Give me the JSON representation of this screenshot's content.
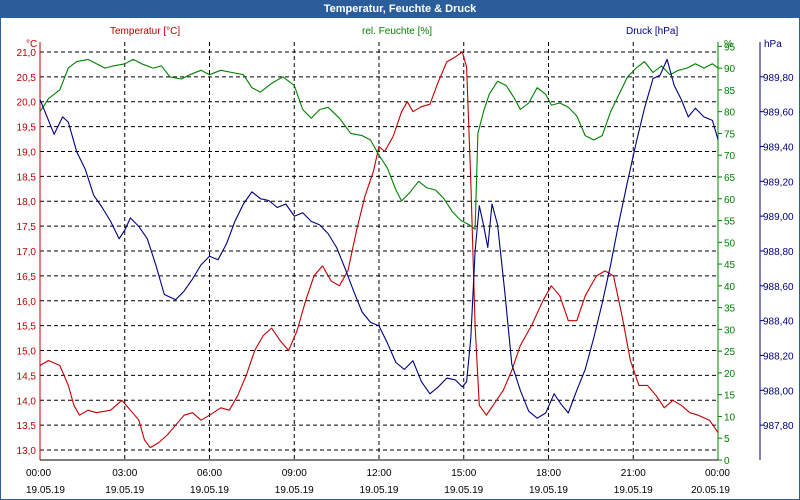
{
  "window": {
    "title": "Temperatur, Feuchte & Druck"
  },
  "chart_data": {
    "type": "line",
    "title": "Temperatur, Feuchte & Druck",
    "grid": true,
    "x_ticks": [
      {
        "time": "00:00",
        "date": "19.05.19",
        "h": 0
      },
      {
        "time": "03:00",
        "date": "19.05.19",
        "h": 3
      },
      {
        "time": "06:00",
        "date": "19.05.19",
        "h": 6
      },
      {
        "time": "09:00",
        "date": "19.05.19",
        "h": 9
      },
      {
        "time": "12:00",
        "date": "19.05.19",
        "h": 12
      },
      {
        "time": "15:00",
        "date": "19.05.19",
        "h": 15
      },
      {
        "time": "18:00",
        "date": "19.05.19",
        "h": 18
      },
      {
        "time": "21:00",
        "date": "19.05.19",
        "h": 21
      },
      {
        "time": "00:00",
        "date": "20.05.19",
        "h": 24
      }
    ],
    "axes": {
      "temperature": {
        "unit_label": "°C",
        "ylim": [
          12.8,
          21.2
        ],
        "ticks": [
          "13,0",
          "13,5",
          "14,0",
          "14,5",
          "15,0",
          "15,5",
          "16,0",
          "16,5",
          "17,0",
          "17,5",
          "18,0",
          "18,5",
          "19,0",
          "19,5",
          "20,0",
          "20,5",
          "21,0"
        ],
        "tick_values": [
          13.0,
          13.5,
          14.0,
          14.5,
          15.0,
          15.5,
          16.0,
          16.5,
          17.0,
          17.5,
          18.0,
          18.5,
          19.0,
          19.5,
          20.0,
          20.5,
          21.0
        ]
      },
      "humidity": {
        "unit_label": "%",
        "ylim": [
          0,
          96
        ],
        "ticks": [
          "0",
          "5",
          "10",
          "15",
          "20",
          "25",
          "30",
          "35",
          "40",
          "45",
          "50",
          "55",
          "60",
          "65",
          "70",
          "75",
          "80",
          "85",
          "90",
          "95"
        ],
        "tick_values": [
          0,
          5,
          10,
          15,
          20,
          25,
          30,
          35,
          40,
          45,
          50,
          55,
          60,
          65,
          70,
          75,
          80,
          85,
          90,
          95
        ]
      },
      "pressure": {
        "unit_label": "hPa",
        "ylim": [
          987.6,
          990.0
        ],
        "ticks": [
          "987,80",
          "988,00",
          "988,20",
          "988,40",
          "988,60",
          "988,80",
          "989,00",
          "989,20",
          "989,40",
          "989,60",
          "989,80"
        ],
        "tick_values": [
          987.8,
          988.0,
          988.2,
          988.4,
          988.6,
          988.8,
          989.0,
          989.2,
          989.4,
          989.6,
          989.8
        ]
      }
    },
    "series": [
      {
        "name": "Temperatur [°C]",
        "axis": "temperature",
        "color": "#c00000",
        "points": [
          [
            0,
            14.7
          ],
          [
            0.3,
            14.8
          ],
          [
            0.7,
            14.7
          ],
          [
            1,
            14.3
          ],
          [
            1.2,
            13.9
          ],
          [
            1.4,
            13.7
          ],
          [
            1.7,
            13.8
          ],
          [
            2,
            13.75
          ],
          [
            2.5,
            13.8
          ],
          [
            2.9,
            14.0
          ],
          [
            3.2,
            13.8
          ],
          [
            3.5,
            13.6
          ],
          [
            3.7,
            13.2
          ],
          [
            3.9,
            13.05
          ],
          [
            4.2,
            13.15
          ],
          [
            4.5,
            13.3
          ],
          [
            4.8,
            13.5
          ],
          [
            5.1,
            13.7
          ],
          [
            5.4,
            13.75
          ],
          [
            5.7,
            13.6
          ],
          [
            6,
            13.7
          ],
          [
            6.4,
            13.85
          ],
          [
            6.7,
            13.8
          ],
          [
            7,
            14.1
          ],
          [
            7.3,
            14.5
          ],
          [
            7.6,
            15.0
          ],
          [
            7.9,
            15.3
          ],
          [
            8.2,
            15.45
          ],
          [
            8.5,
            15.2
          ],
          [
            8.8,
            15.0
          ],
          [
            9.1,
            15.4
          ],
          [
            9.4,
            16.0
          ],
          [
            9.7,
            16.5
          ],
          [
            10,
            16.7
          ],
          [
            10.3,
            16.4
          ],
          [
            10.6,
            16.3
          ],
          [
            10.9,
            16.6
          ],
          [
            11.2,
            17.4
          ],
          [
            11.5,
            18.1
          ],
          [
            11.8,
            18.6
          ],
          [
            12,
            19.1
          ],
          [
            12.2,
            19.0
          ],
          [
            12.5,
            19.3
          ],
          [
            12.8,
            19.8
          ],
          [
            13.0,
            20.0
          ],
          [
            13.2,
            19.8
          ],
          [
            13.5,
            19.9
          ],
          [
            13.8,
            19.95
          ],
          [
            14.1,
            20.4
          ],
          [
            14.4,
            20.8
          ],
          [
            14.7,
            20.9
          ],
          [
            14.95,
            21.0
          ],
          [
            15.1,
            20.7
          ],
          [
            15.25,
            18.4
          ],
          [
            15.4,
            15.5
          ],
          [
            15.55,
            13.9
          ],
          [
            15.8,
            13.7
          ],
          [
            16.1,
            13.95
          ],
          [
            16.4,
            14.2
          ],
          [
            16.7,
            14.6
          ],
          [
            17,
            15.1
          ],
          [
            17.4,
            15.5
          ],
          [
            17.8,
            16.0
          ],
          [
            18.1,
            16.3
          ],
          [
            18.4,
            16.1
          ],
          [
            18.7,
            15.6
          ],
          [
            19.0,
            15.6
          ],
          [
            19.3,
            16.1
          ],
          [
            19.7,
            16.5
          ],
          [
            20.0,
            16.6
          ],
          [
            20.3,
            16.5
          ],
          [
            20.6,
            15.7
          ],
          [
            20.9,
            14.8
          ],
          [
            21.2,
            14.3
          ],
          [
            21.5,
            14.3
          ],
          [
            21.8,
            14.1
          ],
          [
            22.1,
            13.85
          ],
          [
            22.4,
            14.0
          ],
          [
            22.7,
            13.9
          ],
          [
            23.0,
            13.75
          ],
          [
            23.3,
            13.7
          ],
          [
            23.7,
            13.6
          ],
          [
            24,
            13.35
          ]
        ]
      },
      {
        "name": "rel. Feuchte [%]",
        "axis": "humidity",
        "color": "#008000",
        "points": [
          [
            0,
            80
          ],
          [
            0.3,
            83
          ],
          [
            0.7,
            85
          ],
          [
            1.0,
            90
          ],
          [
            1.3,
            91.5
          ],
          [
            1.7,
            92
          ],
          [
            2,
            91
          ],
          [
            2.3,
            90
          ],
          [
            2.6,
            90.5
          ],
          [
            3,
            91
          ],
          [
            3.3,
            92
          ],
          [
            3.6,
            91
          ],
          [
            4,
            90
          ],
          [
            4.3,
            90.5
          ],
          [
            4.6,
            88
          ],
          [
            5,
            87.5
          ],
          [
            5.3,
            88.5
          ],
          [
            5.7,
            89.5
          ],
          [
            6,
            88.5
          ],
          [
            6.4,
            89.5
          ],
          [
            6.8,
            89
          ],
          [
            7.2,
            88.5
          ],
          [
            7.5,
            85.5
          ],
          [
            7.8,
            84.5
          ],
          [
            8.2,
            86.5
          ],
          [
            8.6,
            88
          ],
          [
            9,
            86
          ],
          [
            9.3,
            80.5
          ],
          [
            9.6,
            78.5
          ],
          [
            9.9,
            80.5
          ],
          [
            10.2,
            81
          ],
          [
            10.6,
            78.5
          ],
          [
            11.0,
            75
          ],
          [
            11.4,
            74.5
          ],
          [
            11.7,
            73.5
          ],
          [
            12.0,
            70
          ],
          [
            12.3,
            67
          ],
          [
            12.6,
            62
          ],
          [
            12.8,
            59.5
          ],
          [
            13.1,
            61.5
          ],
          [
            13.4,
            64
          ],
          [
            13.7,
            62.5
          ],
          [
            14,
            62
          ],
          [
            14.3,
            60
          ],
          [
            14.6,
            57
          ],
          [
            14.9,
            55
          ],
          [
            15.2,
            54
          ],
          [
            15.4,
            53
          ],
          [
            15.5,
            75
          ],
          [
            15.7,
            80
          ],
          [
            15.9,
            84
          ],
          [
            16.2,
            87
          ],
          [
            16.5,
            86
          ],
          [
            16.8,
            83
          ],
          [
            17.0,
            80.5
          ],
          [
            17.3,
            82
          ],
          [
            17.6,
            85.5
          ],
          [
            17.9,
            84
          ],
          [
            18.1,
            81.5
          ],
          [
            18.4,
            82
          ],
          [
            18.7,
            81
          ],
          [
            19,
            79
          ],
          [
            19.3,
            74.5
          ],
          [
            19.6,
            73.5
          ],
          [
            19.9,
            74.5
          ],
          [
            20.2,
            80
          ],
          [
            20.5,
            84
          ],
          [
            20.8,
            88
          ],
          [
            21.1,
            90
          ],
          [
            21.4,
            91.5
          ],
          [
            21.7,
            89
          ],
          [
            22,
            90.5
          ],
          [
            22.3,
            88.5
          ],
          [
            22.6,
            89.5
          ],
          [
            22.9,
            90
          ],
          [
            23.2,
            91
          ],
          [
            23.5,
            90
          ],
          [
            23.8,
            91
          ],
          [
            24,
            90
          ]
        ]
      },
      {
        "name": "Druck [hPa]",
        "axis": "pressure",
        "color": "#000080",
        "points": [
          [
            0,
            989.67
          ],
          [
            0.25,
            989.57
          ],
          [
            0.5,
            989.47
          ],
          [
            0.8,
            989.57
          ],
          [
            1.0,
            989.54
          ],
          [
            1.3,
            989.37
          ],
          [
            1.6,
            989.27
          ],
          [
            1.9,
            989.12
          ],
          [
            2.2,
            989.05
          ],
          [
            2.5,
            988.97
          ],
          [
            2.8,
            988.87
          ],
          [
            3.0,
            988.92
          ],
          [
            3.2,
            988.99
          ],
          [
            3.5,
            988.94
          ],
          [
            3.8,
            988.87
          ],
          [
            4.1,
            988.72
          ],
          [
            4.4,
            988.55
          ],
          [
            4.8,
            988.52
          ],
          [
            5.1,
            988.57
          ],
          [
            5.4,
            988.64
          ],
          [
            5.7,
            988.72
          ],
          [
            6.0,
            988.77
          ],
          [
            6.3,
            988.75
          ],
          [
            6.6,
            988.84
          ],
          [
            6.9,
            988.97
          ],
          [
            7.2,
            989.07
          ],
          [
            7.5,
            989.14
          ],
          [
            7.8,
            989.1
          ],
          [
            8.1,
            989.09
          ],
          [
            8.4,
            989.05
          ],
          [
            8.7,
            989.07
          ],
          [
            9.0,
            989.0
          ],
          [
            9.3,
            989.02
          ],
          [
            9.6,
            988.97
          ],
          [
            9.9,
            988.95
          ],
          [
            10.2,
            988.9
          ],
          [
            10.5,
            988.82
          ],
          [
            10.8,
            988.7
          ],
          [
            11.1,
            988.57
          ],
          [
            11.4,
            988.45
          ],
          [
            11.7,
            988.39
          ],
          [
            12.0,
            988.37
          ],
          [
            12.3,
            988.27
          ],
          [
            12.6,
            988.16
          ],
          [
            12.9,
            988.12
          ],
          [
            13.2,
            988.17
          ],
          [
            13.5,
            988.05
          ],
          [
            13.8,
            987.98
          ],
          [
            14.1,
            988.02
          ],
          [
            14.4,
            988.07
          ],
          [
            14.7,
            988.06
          ],
          [
            14.95,
            988.02
          ],
          [
            15.1,
            988.05
          ],
          [
            15.25,
            988.3
          ],
          [
            15.4,
            988.8
          ],
          [
            15.55,
            989.06
          ],
          [
            15.7,
            988.95
          ],
          [
            15.85,
            988.82
          ],
          [
            16.0,
            989.07
          ],
          [
            16.2,
            988.95
          ],
          [
            16.45,
            988.57
          ],
          [
            16.7,
            988.15
          ],
          [
            17.0,
            988.0
          ],
          [
            17.3,
            987.88
          ],
          [
            17.6,
            987.84
          ],
          [
            17.9,
            987.87
          ],
          [
            18.2,
            987.98
          ],
          [
            18.45,
            987.92
          ],
          [
            18.7,
            987.87
          ],
          [
            19.0,
            988.0
          ],
          [
            19.3,
            988.12
          ],
          [
            19.6,
            988.3
          ],
          [
            19.9,
            988.5
          ],
          [
            20.2,
            988.72
          ],
          [
            20.5,
            988.97
          ],
          [
            20.8,
            989.2
          ],
          [
            21.1,
            989.42
          ],
          [
            21.4,
            989.62
          ],
          [
            21.7,
            989.79
          ],
          [
            21.95,
            989.81
          ],
          [
            22.2,
            989.9
          ],
          [
            22.45,
            989.75
          ],
          [
            22.7,
            989.67
          ],
          [
            22.95,
            989.57
          ],
          [
            23.2,
            989.62
          ],
          [
            23.5,
            989.57
          ],
          [
            23.8,
            989.55
          ],
          [
            24,
            989.44
          ]
        ]
      }
    ]
  }
}
